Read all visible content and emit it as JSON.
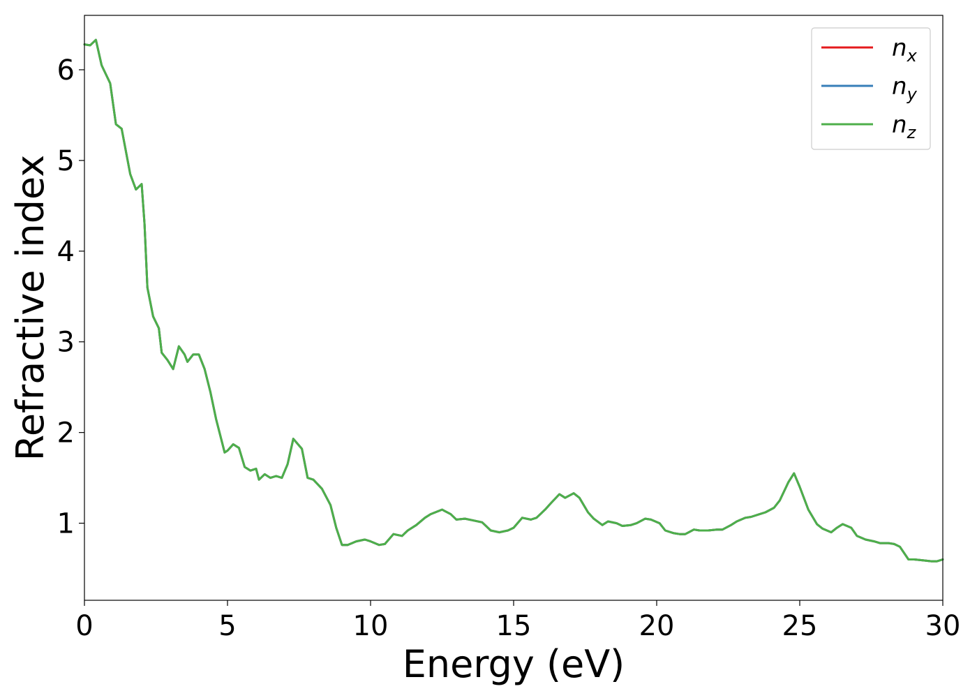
{
  "chart_data": {
    "type": "line",
    "xlabel": "Energy (eV)",
    "ylabel": "Refractive index",
    "xlim": [
      0,
      30
    ],
    "ylim": [
      0.15,
      6.6
    ],
    "xticks": [
      0,
      5,
      10,
      15,
      20,
      25,
      30
    ],
    "xtick_labels": [
      "0",
      "5",
      "10",
      "15",
      "20",
      "25",
      "30"
    ],
    "yticks": [
      1,
      2,
      3,
      4,
      5,
      6
    ],
    "ytick_labels": [
      "1",
      "2",
      "3",
      "4",
      "5",
      "6"
    ],
    "grid": false,
    "legend_position": "top-right",
    "x": [
      0,
      0.2,
      0.4,
      0.6,
      0.9,
      1.1,
      1.3,
      1.6,
      1.8,
      2.0,
      2.1,
      2.2,
      2.4,
      2.6,
      2.7,
      2.9,
      3.1,
      3.3,
      3.5,
      3.6,
      3.8,
      4.0,
      4.2,
      4.4,
      4.6,
      4.9,
      5.0,
      5.2,
      5.4,
      5.6,
      5.8,
      6.0,
      6.1,
      6.3,
      6.5,
      6.7,
      6.9,
      7.1,
      7.3,
      7.6,
      7.8,
      8.0,
      8.3,
      8.6,
      8.8,
      9.0,
      9.2,
      9.5,
      9.8,
      10.0,
      10.3,
      10.5,
      10.8,
      11.1,
      11.3,
      11.6,
      11.9,
      12.1,
      12.5,
      12.8,
      13.0,
      13.3,
      13.6,
      13.9,
      14.2,
      14.5,
      14.8,
      15.0,
      15.3,
      15.6,
      15.8,
      16.1,
      16.3,
      16.6,
      16.8,
      17.1,
      17.3,
      17.6,
      17.8,
      18.1,
      18.3,
      18.6,
      18.8,
      19.1,
      19.3,
      19.6,
      19.8,
      20.1,
      20.3,
      20.6,
      20.8,
      21.0,
      21.3,
      21.5,
      21.8,
      22.1,
      22.3,
      22.6,
      22.8,
      23.1,
      23.3,
      23.6,
      23.8,
      24.1,
      24.3,
      24.6,
      24.8,
      25.0,
      25.3,
      25.6,
      25.8,
      26.1,
      26.3,
      26.5,
      26.8,
      27.0,
      27.3,
      27.6,
      27.8,
      28.1,
      28.3,
      28.5,
      28.8,
      29.0,
      29.3,
      29.6,
      29.8,
      30.0
    ],
    "series": [
      {
        "name": "n_x",
        "color": "#e41a1c",
        "values": [
          6.28,
          6.27,
          6.33,
          6.05,
          5.85,
          5.4,
          5.35,
          4.85,
          4.68,
          4.74,
          4.3,
          3.6,
          3.28,
          3.15,
          2.88,
          2.8,
          2.7,
          2.95,
          2.86,
          2.78,
          2.86,
          2.86,
          2.7,
          2.45,
          2.15,
          1.78,
          1.8,
          1.87,
          1.83,
          1.62,
          1.58,
          1.6,
          1.48,
          1.54,
          1.5,
          1.52,
          1.5,
          1.65,
          1.93,
          1.82,
          1.5,
          1.48,
          1.38,
          1.2,
          0.95,
          0.76,
          0.76,
          0.8,
          0.82,
          0.8,
          0.76,
          0.77,
          0.88,
          0.86,
          0.92,
          0.98,
          1.06,
          1.1,
          1.15,
          1.1,
          1.04,
          1.05,
          1.03,
          1.01,
          0.92,
          0.9,
          0.92,
          0.95,
          1.06,
          1.04,
          1.06,
          1.15,
          1.22,
          1.32,
          1.28,
          1.33,
          1.28,
          1.12,
          1.05,
          0.98,
          1.02,
          1.0,
          0.97,
          0.98,
          1.0,
          1.05,
          1.04,
          1.0,
          0.92,
          0.89,
          0.88,
          0.88,
          0.93,
          0.92,
          0.92,
          0.93,
          0.93,
          0.98,
          1.02,
          1.06,
          1.07,
          1.1,
          1.12,
          1.17,
          1.25,
          1.45,
          1.55,
          1.4,
          1.15,
          0.99,
          0.94,
          0.9,
          0.95,
          0.99,
          0.95,
          0.86,
          0.82,
          0.8,
          0.78,
          0.78,
          0.77,
          0.74,
          0.6,
          0.6,
          0.59,
          0.58,
          0.58,
          0.6
        ]
      },
      {
        "name": "n_y",
        "color": "#377eb8",
        "values": [
          6.28,
          6.27,
          6.33,
          6.05,
          5.85,
          5.4,
          5.35,
          4.85,
          4.68,
          4.74,
          4.3,
          3.6,
          3.28,
          3.15,
          2.88,
          2.8,
          2.7,
          2.95,
          2.86,
          2.78,
          2.86,
          2.86,
          2.7,
          2.45,
          2.15,
          1.78,
          1.8,
          1.87,
          1.83,
          1.62,
          1.58,
          1.6,
          1.48,
          1.54,
          1.5,
          1.52,
          1.5,
          1.65,
          1.93,
          1.82,
          1.5,
          1.48,
          1.38,
          1.2,
          0.95,
          0.76,
          0.76,
          0.8,
          0.82,
          0.8,
          0.76,
          0.77,
          0.88,
          0.86,
          0.92,
          0.98,
          1.06,
          1.1,
          1.15,
          1.1,
          1.04,
          1.05,
          1.03,
          1.01,
          0.92,
          0.9,
          0.92,
          0.95,
          1.06,
          1.04,
          1.06,
          1.15,
          1.22,
          1.32,
          1.28,
          1.33,
          1.28,
          1.12,
          1.05,
          0.98,
          1.02,
          1.0,
          0.97,
          0.98,
          1.0,
          1.05,
          1.04,
          1.0,
          0.92,
          0.89,
          0.88,
          0.88,
          0.93,
          0.92,
          0.92,
          0.93,
          0.93,
          0.98,
          1.02,
          1.06,
          1.07,
          1.1,
          1.12,
          1.17,
          1.25,
          1.45,
          1.55,
          1.4,
          1.15,
          0.99,
          0.94,
          0.9,
          0.95,
          0.99,
          0.95,
          0.86,
          0.82,
          0.8,
          0.78,
          0.78,
          0.77,
          0.74,
          0.6,
          0.6,
          0.59,
          0.58,
          0.58,
          0.6
        ]
      },
      {
        "name": "n_z",
        "color": "#4daf4a",
        "values": [
          6.28,
          6.27,
          6.33,
          6.05,
          5.85,
          5.4,
          5.35,
          4.85,
          4.68,
          4.74,
          4.3,
          3.6,
          3.28,
          3.15,
          2.88,
          2.8,
          2.7,
          2.95,
          2.86,
          2.78,
          2.86,
          2.86,
          2.7,
          2.45,
          2.15,
          1.78,
          1.8,
          1.87,
          1.83,
          1.62,
          1.58,
          1.6,
          1.48,
          1.54,
          1.5,
          1.52,
          1.5,
          1.65,
          1.93,
          1.82,
          1.5,
          1.48,
          1.38,
          1.2,
          0.95,
          0.76,
          0.76,
          0.8,
          0.82,
          0.8,
          0.76,
          0.77,
          0.88,
          0.86,
          0.92,
          0.98,
          1.06,
          1.1,
          1.15,
          1.1,
          1.04,
          1.05,
          1.03,
          1.01,
          0.92,
          0.9,
          0.92,
          0.95,
          1.06,
          1.04,
          1.06,
          1.15,
          1.22,
          1.32,
          1.28,
          1.33,
          1.28,
          1.12,
          1.05,
          0.98,
          1.02,
          1.0,
          0.97,
          0.98,
          1.0,
          1.05,
          1.04,
          1.0,
          0.92,
          0.89,
          0.88,
          0.88,
          0.93,
          0.92,
          0.92,
          0.93,
          0.93,
          0.98,
          1.02,
          1.06,
          1.07,
          1.1,
          1.12,
          1.17,
          1.25,
          1.45,
          1.55,
          1.4,
          1.15,
          0.99,
          0.94,
          0.9,
          0.95,
          0.99,
          0.95,
          0.86,
          0.82,
          0.8,
          0.78,
          0.78,
          0.77,
          0.74,
          0.6,
          0.6,
          0.59,
          0.58,
          0.58,
          0.6
        ]
      }
    ],
    "legend": [
      {
        "base": "n",
        "sub": "x",
        "color": "#e41a1c"
      },
      {
        "base": "n",
        "sub": "y",
        "color": "#377eb8"
      },
      {
        "base": "n",
        "sub": "z",
        "color": "#4daf4a"
      }
    ]
  }
}
